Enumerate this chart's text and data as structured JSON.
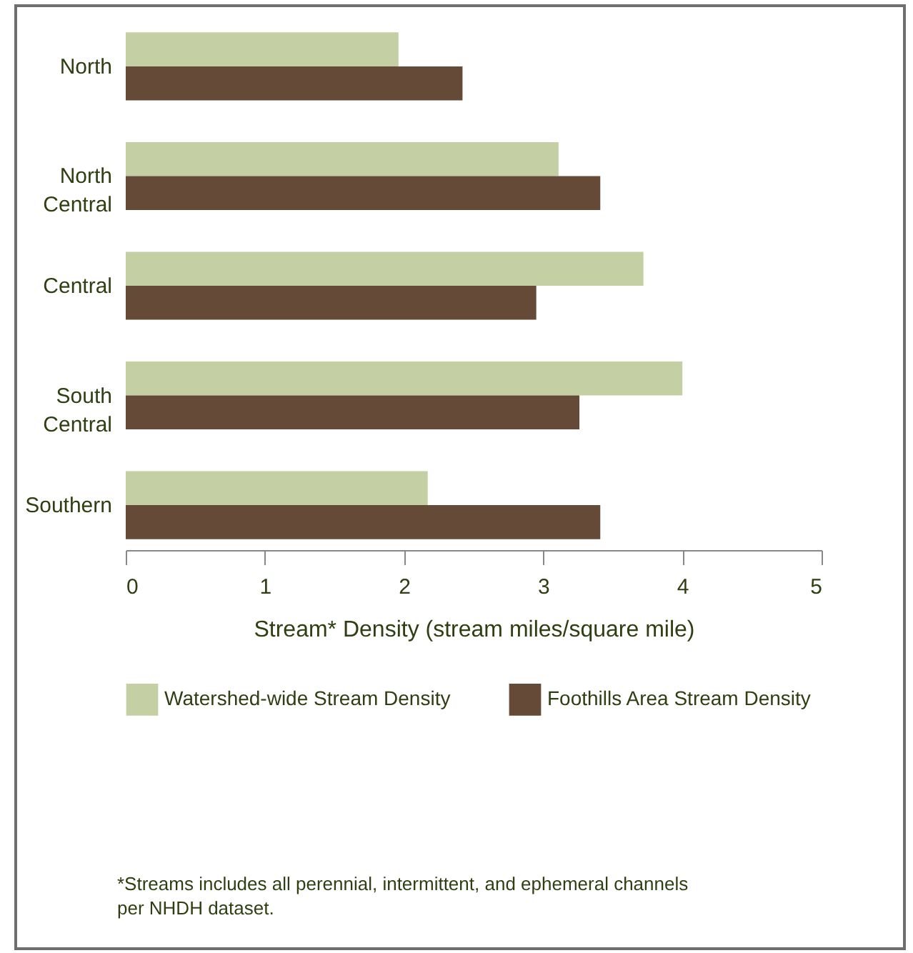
{
  "chart_data": {
    "type": "bar",
    "orientation": "horizontal",
    "categories": [
      "North",
      "North\nCentral",
      "Central",
      "South\nCentral",
      "Southern"
    ],
    "series": [
      {
        "name": "Watershed-wide Stream Density",
        "color": "#c4cfa3",
        "values": [
          1.96,
          3.11,
          3.72,
          4.0,
          2.17
        ]
      },
      {
        "name": "Foothills Area Stream Density",
        "color": "#654a38",
        "values": [
          2.42,
          3.41,
          2.95,
          3.26,
          3.41
        ]
      }
    ],
    "xlabel": "Stream*  Density (stream miles/square mile)",
    "xlim": [
      0,
      5
    ],
    "xticks": [
      0,
      1,
      2,
      3,
      4,
      5
    ],
    "grid": false,
    "legend": "bottom",
    "annotations": [
      "*Streams includes all perennial, intermittent, and ephemeral channels\nper NHDH dataset."
    ]
  }
}
